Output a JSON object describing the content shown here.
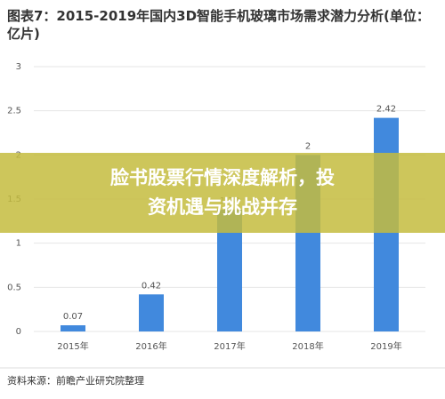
{
  "chart_data": {
    "type": "bar",
    "title": "图表7：2015-2019年国内3D智能手机玻璃市场需求潜力分析(单位：亿片)",
    "categories": [
      "2015年",
      "2016年",
      "2017年",
      "2018年",
      "2019年"
    ],
    "values": [
      0.07,
      0.42,
      1.38,
      2,
      2.42
    ],
    "color": "#4189dd",
    "ylim": [
      0,
      3
    ],
    "yticks": [
      0,
      0.5,
      1,
      1.5,
      2,
      2.5,
      3
    ],
    "grid": true,
    "source": "资料来源：前瞻产业研究院整理"
  },
  "banner": {
    "text": "脸书股票行情深度解析，投资机遇与挑战并存"
  }
}
